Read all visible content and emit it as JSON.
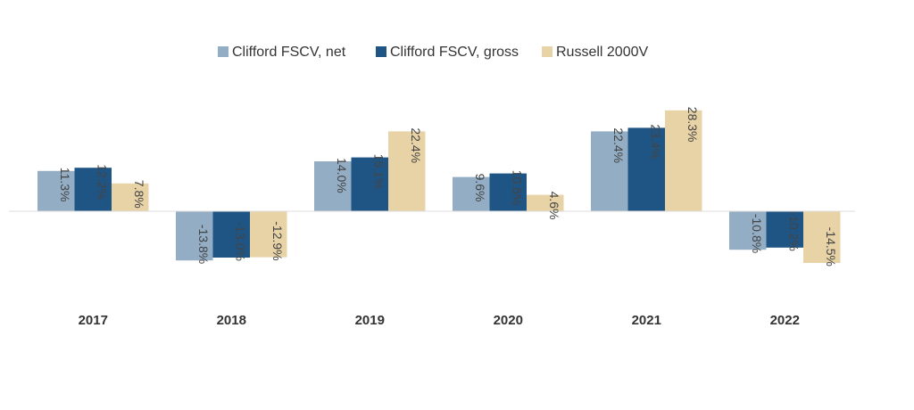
{
  "chart_data": {
    "type": "bar",
    "categories": [
      "2017",
      "2018",
      "2019",
      "2020",
      "2021",
      "2022"
    ],
    "series": [
      {
        "name": "Clifford FSCV, net",
        "color": "#92adc4",
        "values": [
          11.3,
          -13.8,
          14.0,
          9.6,
          22.4,
          -10.8
        ],
        "labels": [
          "11.3%",
          "-13.8%",
          "14.0%",
          "9.6%",
          "22.4%",
          "-10.8%"
        ]
      },
      {
        "name": "Clifford FSCV, gross",
        "color": "#1f5585",
        "values": [
          12.2,
          -13.0,
          15.1,
          10.6,
          23.4,
          -10.2
        ],
        "labels": [
          "12.2%",
          "-13.0%",
          "15.1%",
          "10.6%",
          "23.4%",
          "-10.2%"
        ]
      },
      {
        "name": "Russell 2000V",
        "color": "#e8d3a6",
        "values": [
          7.8,
          -12.9,
          22.4,
          4.6,
          28.3,
          -14.5
        ],
        "labels": [
          "7.8%",
          "-12.9%",
          "22.4%",
          "4.6%",
          "28.3%",
          "-14.5%"
        ]
      }
    ],
    "title": "",
    "xlabel": "",
    "ylabel": "",
    "ylim": [
      -30,
      40
    ],
    "grid": false,
    "legend": "top-center",
    "axis_line_color": "#dddddd"
  }
}
